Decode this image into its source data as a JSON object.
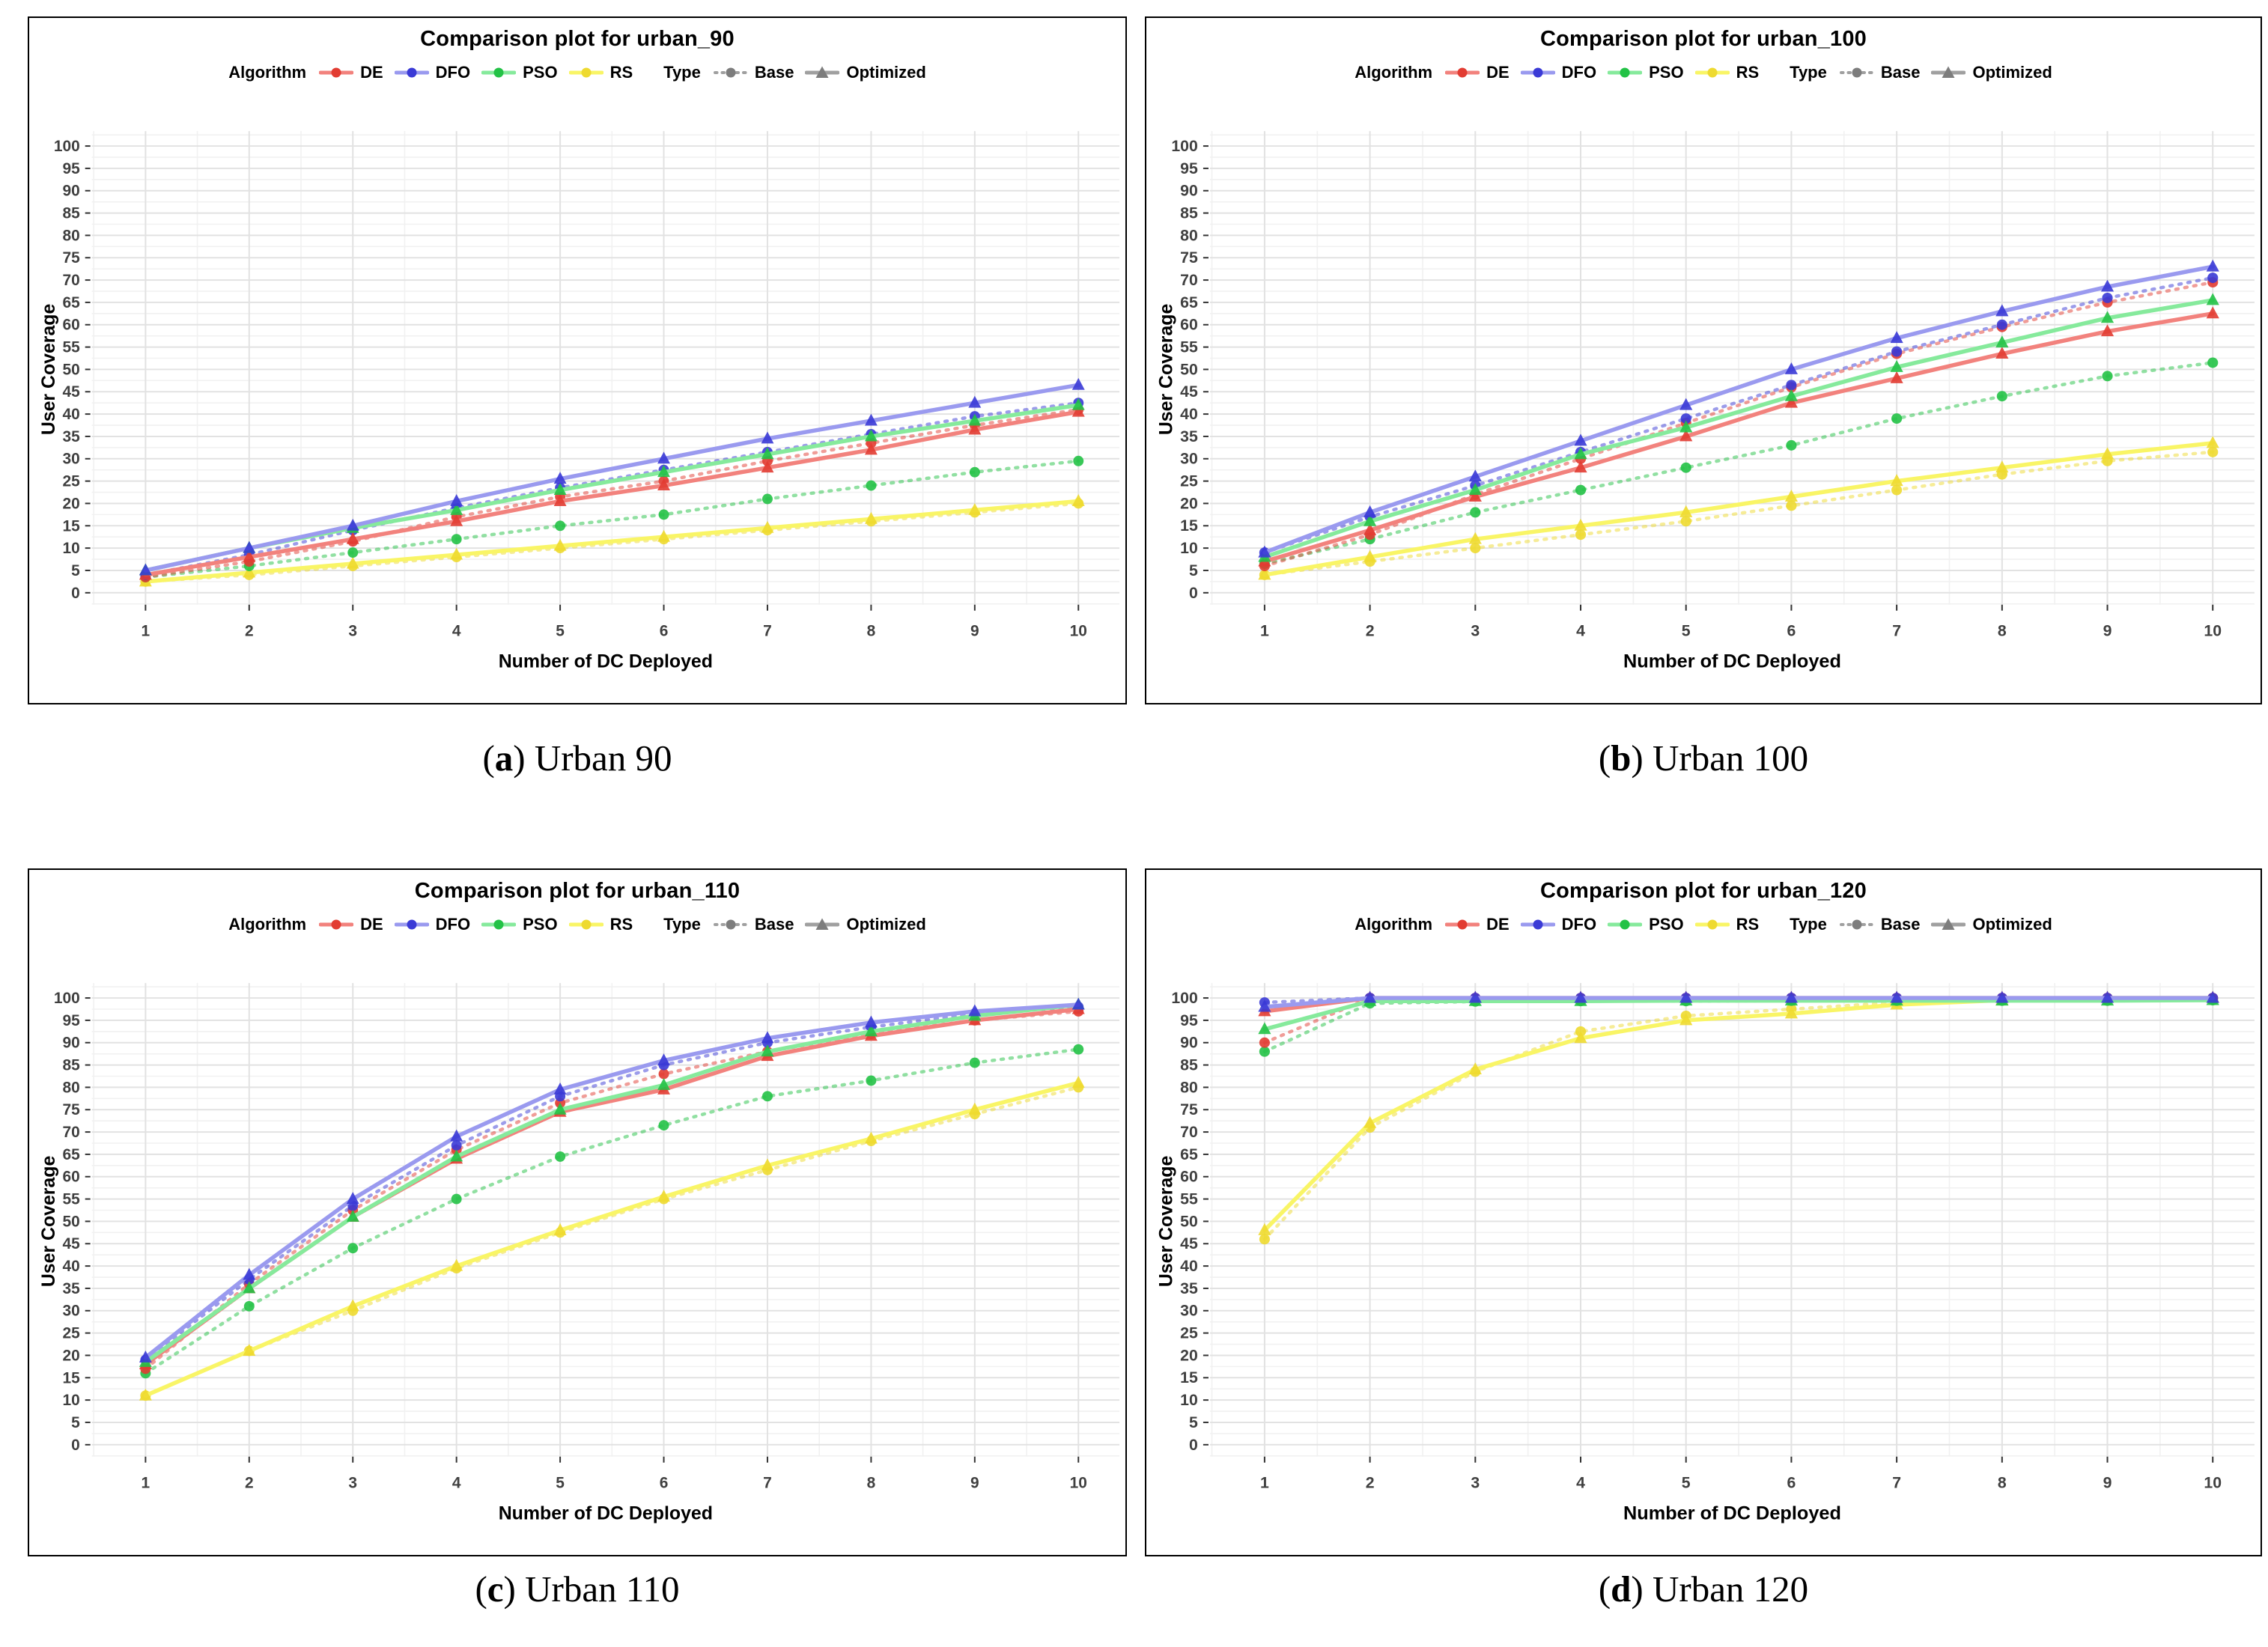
{
  "figure": {
    "captions": [
      {
        "open": "(",
        "letter": "a",
        "close": ")",
        "text": "Urban 90"
      },
      {
        "open": "(",
        "letter": "b",
        "close": ")",
        "text": "Urban 100"
      },
      {
        "open": "(",
        "letter": "c",
        "close": ")",
        "text": "Urban 110"
      },
      {
        "open": "(",
        "letter": "d",
        "close": ")",
        "text": "Urban 120"
      }
    ]
  },
  "legend": {
    "algorithm_label": "Algorithm",
    "type_label": "Type",
    "algorithms": [
      {
        "name": "DE",
        "marker_color": "#e23c32",
        "line_color": "#f2827d"
      },
      {
        "name": "DFO",
        "marker_color": "#3a3ad6",
        "line_color": "#9a9aef"
      },
      {
        "name": "PSO",
        "marker_color": "#23c246",
        "line_color": "#86ea9c"
      },
      {
        "name": "RS",
        "marker_color": "#eeda30",
        "line_color": "#f9f566"
      }
    ],
    "types": [
      {
        "name": "Base",
        "line_style": "dotted",
        "marker": "circle"
      },
      {
        "name": "Optimized",
        "line_style": "solid",
        "marker": "triangle"
      }
    ],
    "type_marker_color": "#7d7d7d",
    "type_line_color": "#a0a0a0"
  },
  "axes": {
    "ylabel": "User Coverage",
    "xlabel": "Number of DC Deployed",
    "ylim": [
      0,
      100
    ],
    "ytick_step": 5,
    "x_ticks": [
      1,
      2,
      3,
      4,
      5,
      6,
      7,
      8,
      9,
      10
    ],
    "grid": true,
    "tick_label_color": "#404040"
  },
  "chart_data": [
    {
      "type": "line",
      "title": "Comparison plot for urban_90",
      "x": [
        1,
        2,
        3,
        4,
        5,
        6,
        7,
        8,
        9,
        10
      ],
      "ylim": [
        0,
        100
      ],
      "series": [
        {
          "algorithm": "RS",
          "type": "Base",
          "values": [
            2.5,
            4,
            6,
            8,
            10,
            12,
            14,
            16,
            18,
            20
          ]
        },
        {
          "algorithm": "RS",
          "type": "Optimized",
          "values": [
            2.5,
            4.5,
            6.5,
            8.5,
            10.5,
            12.5,
            14.5,
            16.5,
            18.5,
            20.5
          ]
        },
        {
          "algorithm": "PSO",
          "type": "Base",
          "values": [
            3.5,
            6,
            9,
            12,
            15,
            17.5,
            21,
            24,
            27,
            29.5
          ]
        },
        {
          "algorithm": "DE",
          "type": "Base",
          "values": [
            3.5,
            7,
            11.5,
            17,
            21.5,
            25,
            29.5,
            33.5,
            37.5,
            41
          ]
        },
        {
          "algorithm": "DFO",
          "type": "Base",
          "values": [
            4,
            8.5,
            14,
            19,
            23.5,
            27.5,
            31.5,
            35.5,
            39.5,
            42.5
          ]
        },
        {
          "algorithm": "DE",
          "type": "Optimized",
          "values": [
            4,
            8,
            12,
            16,
            20.5,
            24,
            28,
            32,
            36.5,
            40.5
          ]
        },
        {
          "algorithm": "PSO",
          "type": "Optimized",
          "values": [
            5,
            10,
            14.5,
            18.5,
            23,
            27,
            31,
            35,
            38.5,
            42
          ]
        },
        {
          "algorithm": "DFO",
          "type": "Optimized",
          "values": [
            5,
            10,
            15,
            20.5,
            25.5,
            30,
            34.5,
            38.5,
            42.5,
            46.5
          ]
        }
      ]
    },
    {
      "type": "line",
      "title": "Comparison plot for urban_100",
      "x": [
        1,
        2,
        3,
        4,
        5,
        6,
        7,
        8,
        9,
        10
      ],
      "ylim": [
        0,
        100
      ],
      "series": [
        {
          "algorithm": "RS",
          "type": "Base",
          "values": [
            4,
            7,
            10,
            13,
            16,
            19.5,
            23,
            26.5,
            29.5,
            31.5
          ]
        },
        {
          "algorithm": "RS",
          "type": "Optimized",
          "values": [
            4,
            8,
            12,
            15,
            18,
            21.5,
            25,
            28,
            31,
            33.5
          ]
        },
        {
          "algorithm": "PSO",
          "type": "Base",
          "values": [
            6.5,
            12,
            18,
            23,
            28,
            33,
            39,
            44,
            48.5,
            51.5
          ]
        },
        {
          "algorithm": "DE",
          "type": "Base",
          "values": [
            6,
            13,
            22,
            30,
            38,
            46,
            53.5,
            59.5,
            65,
            69.5
          ]
        },
        {
          "algorithm": "DFO",
          "type": "Base",
          "values": [
            9,
            17,
            24,
            31.5,
            39,
            46.5,
            54,
            60,
            66,
            70.5
          ]
        },
        {
          "algorithm": "DE",
          "type": "Optimized",
          "values": [
            7,
            14,
            21.5,
            28,
            35,
            42.5,
            48,
            53.5,
            58.5,
            62.5
          ]
        },
        {
          "algorithm": "PSO",
          "type": "Optimized",
          "values": [
            8,
            16,
            23,
            31,
            37,
            44,
            50.5,
            56,
            61.5,
            65.5
          ]
        },
        {
          "algorithm": "DFO",
          "type": "Optimized",
          "values": [
            9,
            18,
            26,
            34,
            42,
            50,
            57,
            63,
            68.5,
            73
          ]
        }
      ]
    },
    {
      "type": "line",
      "title": "Comparison plot for urban_110",
      "x": [
        1,
        2,
        3,
        4,
        5,
        6,
        7,
        8,
        9,
        10
      ],
      "ylim": [
        0,
        100
      ],
      "series": [
        {
          "algorithm": "RS",
          "type": "Base",
          "values": [
            11,
            21,
            30,
            39.5,
            47.5,
            55,
            61.5,
            68,
            74,
            80
          ]
        },
        {
          "algorithm": "RS",
          "type": "Optimized",
          "values": [
            11,
            21,
            31,
            40,
            48,
            55.5,
            62.5,
            68.5,
            75,
            81
          ]
        },
        {
          "algorithm": "PSO",
          "type": "Base",
          "values": [
            16,
            31,
            44,
            55,
            64.5,
            71.5,
            78,
            81.5,
            85.5,
            88.5
          ]
        },
        {
          "algorithm": "DE",
          "type": "Base",
          "values": [
            17,
            36,
            52.5,
            66,
            76.5,
            83,
            88,
            92,
            95,
            97
          ]
        },
        {
          "algorithm": "DFO",
          "type": "Base",
          "values": [
            19,
            37,
            53.5,
            67,
            78,
            85,
            90,
            93.5,
            96.5,
            98
          ]
        },
        {
          "algorithm": "DE",
          "type": "Optimized",
          "values": [
            18,
            35,
            51,
            64,
            74.5,
            79.5,
            87,
            91.5,
            95,
            97.5
          ]
        },
        {
          "algorithm": "PSO",
          "type": "Optimized",
          "values": [
            18.5,
            35,
            51,
            64.5,
            75,
            80.5,
            88,
            92.5,
            96,
            98.5
          ]
        },
        {
          "algorithm": "DFO",
          "type": "Optimized",
          "values": [
            19.5,
            38,
            55,
            69,
            79.5,
            86,
            91,
            94.5,
            97,
            98.5
          ]
        }
      ]
    },
    {
      "type": "line",
      "title": "Comparison plot for urban_120",
      "x": [
        1,
        2,
        3,
        4,
        5,
        6,
        7,
        8,
        9,
        10
      ],
      "ylim": [
        0,
        100
      ],
      "series": [
        {
          "algorithm": "RS",
          "type": "Base",
          "values": [
            46,
            71,
            83.5,
            92.5,
            96,
            97.5,
            99,
            99.8,
            100,
            100
          ]
        },
        {
          "algorithm": "RS",
          "type": "Optimized",
          "values": [
            48,
            72,
            84,
            91,
            95,
            96.5,
            98.5,
            99.5,
            100,
            100
          ]
        },
        {
          "algorithm": "PSO",
          "type": "Base",
          "values": [
            88,
            98.8,
            99.2,
            99.3,
            99.3,
            99.4,
            99.4,
            99.4,
            99.4,
            99.5
          ]
        },
        {
          "algorithm": "DE",
          "type": "Base",
          "values": [
            90,
            100,
            100,
            100,
            100,
            100,
            100,
            100,
            100,
            100
          ]
        },
        {
          "algorithm": "DFO",
          "type": "Base",
          "values": [
            99,
            100,
            100,
            100,
            100,
            100,
            100,
            100,
            100,
            100
          ]
        },
        {
          "algorithm": "DE",
          "type": "Optimized",
          "values": [
            97,
            100,
            100,
            100,
            100,
            100,
            100,
            100,
            100,
            100
          ]
        },
        {
          "algorithm": "PSO",
          "type": "Optimized",
          "values": [
            93,
            99.3,
            99.3,
            99.3,
            99.4,
            99.4,
            99.4,
            99.4,
            99.4,
            99.5
          ]
        },
        {
          "algorithm": "DFO",
          "type": "Optimized",
          "values": [
            98,
            100,
            100,
            100,
            100,
            100,
            100,
            100,
            100,
            100
          ]
        }
      ]
    }
  ]
}
